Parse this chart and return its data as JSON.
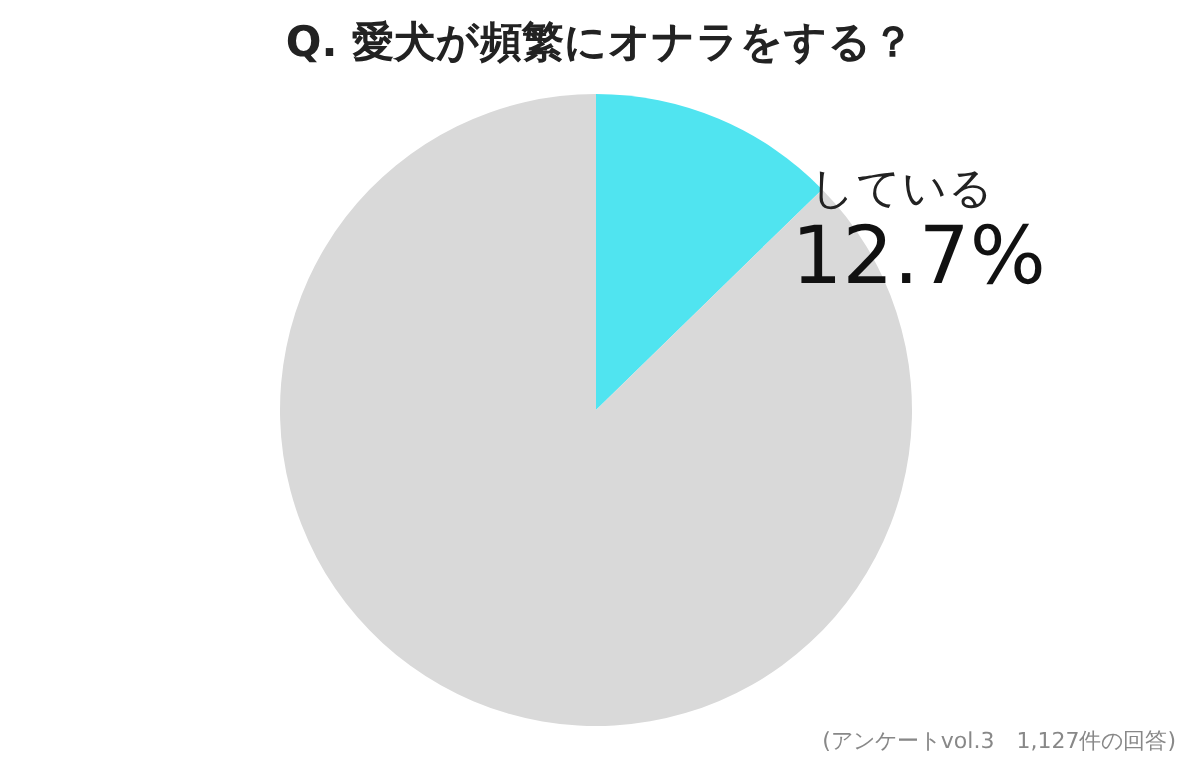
{
  "chart_data": {
    "type": "pie",
    "title": "Q.  愛犬が頻繁にオナラをする？",
    "categories": [
      "している",
      null
    ],
    "values": [
      12.7,
      87.3
    ],
    "colors": [
      "#50e4f0",
      "#d9d9d9"
    ],
    "value_labels": [
      "12.7%",
      null
    ],
    "annotations": [
      "(アンケートvol.3　1,127件の回答)"
    ]
  }
}
